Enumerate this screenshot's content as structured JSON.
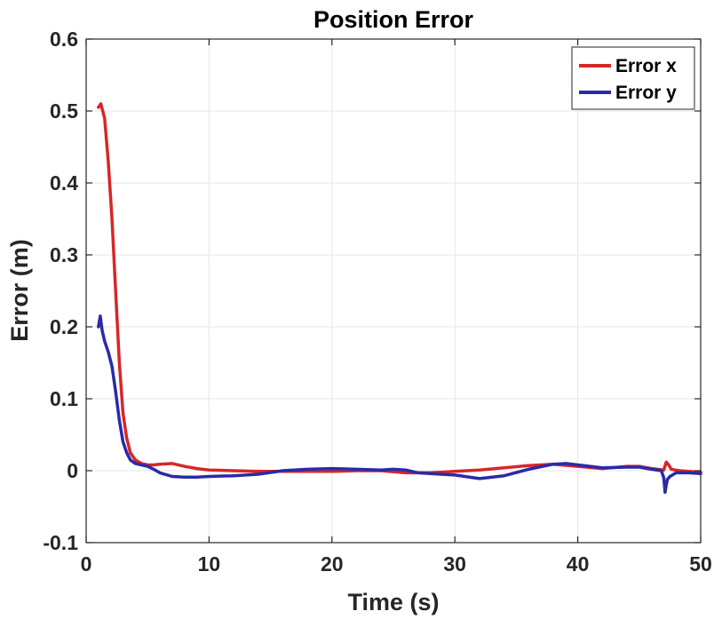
{
  "chart_data": {
    "type": "line",
    "title": "Position Error",
    "xlabel": "Time (s)",
    "ylabel": "Error (m)",
    "xlim": [
      0,
      50
    ],
    "ylim": [
      -0.1,
      0.6
    ],
    "x_ticks": [
      0,
      10,
      20,
      30,
      40,
      50
    ],
    "y_ticks": [
      -0.1,
      0,
      0.1,
      0.2,
      0.3,
      0.4,
      0.5,
      0.6
    ],
    "x_tick_labels": [
      "0",
      "10",
      "20",
      "30",
      "40",
      "50"
    ],
    "y_tick_labels": [
      "-0.1",
      "0",
      "0.1",
      "0.2",
      "0.3",
      "0.4",
      "0.5",
      "0.6"
    ],
    "grid": true,
    "legend_position": "top-right",
    "series": [
      {
        "name": "Error x",
        "color": "#d62728",
        "x": [
          1.0,
          1.2,
          1.5,
          1.8,
          2.1,
          2.4,
          2.7,
          3.0,
          3.3,
          3.6,
          4.0,
          4.5,
          5.0,
          5.5,
          6.0,
          7.0,
          8.0,
          9.0,
          10.0,
          12.0,
          14.0,
          16.0,
          18.0,
          20.0,
          22.0,
          24.0,
          26.0,
          28.0,
          30.0,
          32.0,
          34.0,
          36.0,
          38.0,
          40.0,
          42.0,
          44.0,
          45.0,
          46.0,
          47.0,
          47.2,
          47.4,
          47.6,
          47.9,
          48.3,
          49.0,
          50.0
        ],
        "y": [
          0.505,
          0.51,
          0.49,
          0.43,
          0.35,
          0.25,
          0.15,
          0.08,
          0.045,
          0.025,
          0.015,
          0.01,
          0.008,
          0.008,
          0.009,
          0.01,
          0.006,
          0.003,
          0.001,
          0.0,
          -0.001,
          -0.001,
          -0.001,
          -0.001,
          0.0,
          0.0,
          -0.003,
          -0.003,
          -0.001,
          0.001,
          0.004,
          0.007,
          0.009,
          0.006,
          0.003,
          0.006,
          0.006,
          0.003,
          0.001,
          0.012,
          0.008,
          0.002,
          0.001,
          0.0,
          -0.001,
          -0.002
        ]
      },
      {
        "name": "Error y",
        "color": "#2a2aa8",
        "x": [
          1.0,
          1.15,
          1.3,
          1.5,
          1.8,
          2.1,
          2.4,
          2.7,
          3.0,
          3.3,
          3.6,
          4.0,
          4.5,
          5.0,
          5.5,
          6.0,
          7.0,
          8.0,
          9.0,
          10.0,
          12.0,
          14.0,
          16.0,
          18.0,
          20.0,
          22.0,
          24.0,
          25.0,
          26.0,
          27.0,
          28.0,
          30.0,
          32.0,
          34.0,
          36.0,
          38.0,
          39.0,
          40.0,
          42.0,
          44.0,
          45.0,
          46.0,
          46.8,
          47.0,
          47.1,
          47.2,
          47.3,
          47.5,
          48.0,
          49.0,
          50.0
        ],
        "y": [
          0.2,
          0.215,
          0.195,
          0.18,
          0.165,
          0.145,
          0.11,
          0.07,
          0.04,
          0.025,
          0.015,
          0.01,
          0.008,
          0.006,
          0.002,
          -0.003,
          -0.008,
          -0.009,
          -0.009,
          -0.008,
          -0.007,
          -0.005,
          0.0,
          0.002,
          0.003,
          0.002,
          0.001,
          0.002,
          0.001,
          -0.003,
          -0.004,
          -0.006,
          -0.011,
          -0.007,
          0.002,
          0.009,
          0.01,
          0.008,
          0.004,
          0.005,
          0.005,
          0.002,
          0.0,
          -0.01,
          -0.03,
          -0.02,
          -0.012,
          -0.008,
          -0.003,
          -0.003,
          -0.004
        ]
      }
    ]
  }
}
